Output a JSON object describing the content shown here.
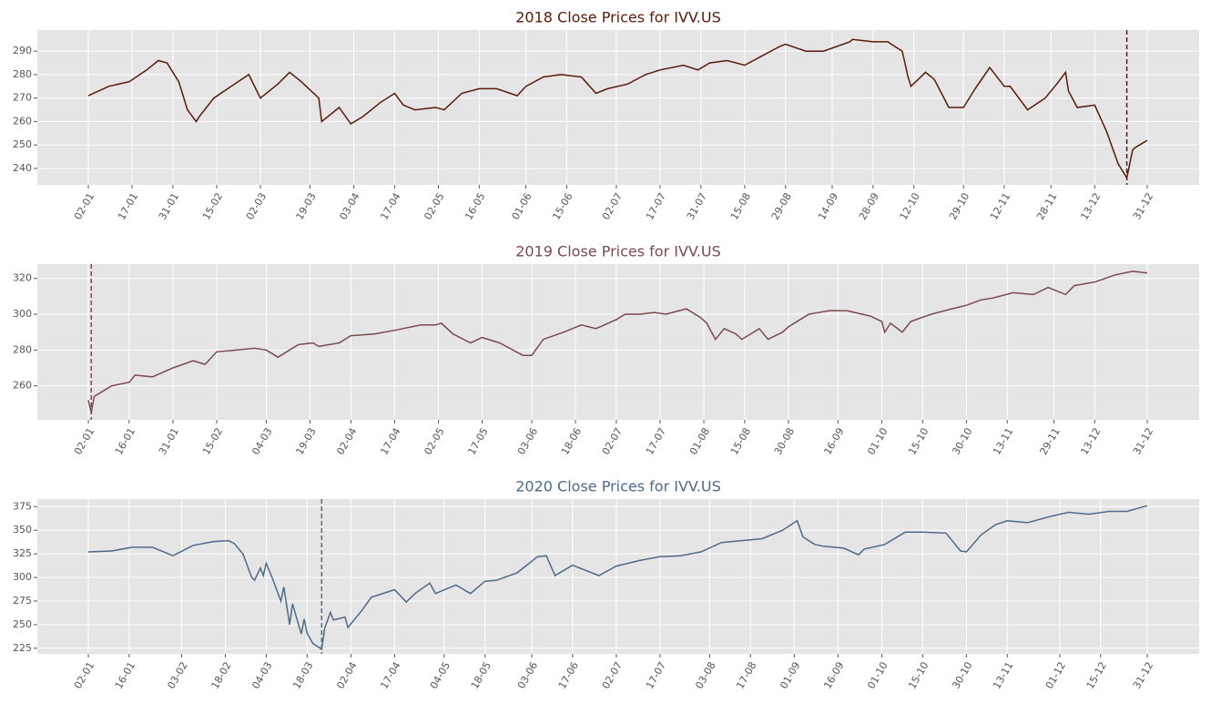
{
  "chart_data": [
    {
      "type": "line",
      "title": "2018 Close Prices for IVV.US",
      "color": "#5a1a0a",
      "grid": true,
      "x": [
        "02-01",
        "09-01",
        "16-01",
        "22-01",
        "26-01",
        "29-01",
        "02-02",
        "05-02",
        "08-02",
        "09-02",
        "14-02",
        "20-02",
        "26-02",
        "02-03",
        "08-03",
        "12-03",
        "16-03",
        "22-03",
        "23-03",
        "29-03",
        "02-04",
        "06-04",
        "12-04",
        "17-04",
        "20-04",
        "24-04",
        "01-05",
        "04-05",
        "10-05",
        "16-05",
        "22-05",
        "29-05",
        "01-06",
        "07-06",
        "13-06",
        "20-06",
        "25-06",
        "29-06",
        "06-07",
        "12-07",
        "17-07",
        "25-07",
        "30-07",
        "03-08",
        "09-08",
        "15-08",
        "21-08",
        "27-08",
        "29-08",
        "05-09",
        "11-09",
        "20-09",
        "21-09",
        "28-09",
        "03-10",
        "08-10",
        "10-10",
        "11-10",
        "16-10",
        "19-10",
        "24-10",
        "29-10",
        "02-11",
        "07-11",
        "12-11",
        "14-11",
        "20-11",
        "26-11",
        "30-11",
        "03-12",
        "04-12",
        "07-12",
        "13-12",
        "17-12",
        "21-12",
        "24-12",
        "26-12",
        "27-12",
        "31-12"
      ],
      "values": [
        271,
        275,
        277,
        282,
        286,
        285,
        277,
        265,
        260,
        262,
        270,
        275,
        280,
        270,
        276,
        281,
        277,
        270,
        260,
        266,
        259,
        262,
        268,
        272,
        267,
        265,
        266,
        265,
        272,
        274,
        274,
        271,
        275,
        279,
        280,
        279,
        272,
        274,
        276,
        280,
        282,
        284,
        282,
        285,
        286,
        284,
        288,
        292,
        293,
        290,
        290,
        294,
        295,
        294,
        294,
        290,
        279,
        275,
        281,
        278,
        266,
        266,
        274,
        283,
        275,
        275,
        265,
        270,
        276,
        281,
        273,
        266,
        267,
        256,
        242,
        236,
        248,
        249,
        252
      ],
      "ylim": [
        233,
        299
      ],
      "yticks": [
        240,
        250,
        260,
        270,
        280,
        290
      ],
      "xticks": [
        "02-01",
        "17-01",
        "31-01",
        "15-02",
        "02-03",
        "19-03",
        "03-04",
        "17-04",
        "02-05",
        "16-05",
        "01-06",
        "15-06",
        "02-07",
        "17-07",
        "31-07",
        "15-08",
        "29-08",
        "14-09",
        "28-09",
        "12-10",
        "29-10",
        "12-11",
        "28-11",
        "13-12",
        "31-12"
      ],
      "marker_x": "24-12"
    },
    {
      "type": "line",
      "title": "2019 Close Prices for IVV.US",
      "color": "#7a4a50",
      "grid": true,
      "x": [
        "02-01",
        "03-01",
        "04-01",
        "10-01",
        "16-01",
        "18-01",
        "24-01",
        "31-01",
        "07-02",
        "11-02",
        "15-02",
        "22-02",
        "28-02",
        "04-03",
        "08-03",
        "15-03",
        "20-03",
        "22-03",
        "29-03",
        "02-04",
        "10-04",
        "17-04",
        "26-04",
        "01-05",
        "03-05",
        "07-05",
        "13-05",
        "17-05",
        "23-05",
        "31-05",
        "03-06",
        "07-06",
        "14-06",
        "20-06",
        "25-06",
        "02-07",
        "05-07",
        "10-07",
        "15-07",
        "19-07",
        "26-07",
        "31-07",
        "02-08",
        "05-08",
        "08-08",
        "12-08",
        "14-08",
        "20-08",
        "23-08",
        "28-08",
        "30-08",
        "06-09",
        "13-09",
        "19-09",
        "27-09",
        "01-10",
        "02-10",
        "04-10",
        "08-10",
        "11-10",
        "18-10",
        "25-10",
        "30-10",
        "04-11",
        "08-11",
        "15-11",
        "22-11",
        "27-11",
        "03-12",
        "06-12",
        "13-12",
        "20-12",
        "26-12",
        "31-12"
      ],
      "values": [
        252,
        245,
        254,
        260,
        262,
        266,
        265,
        270,
        274,
        272,
        279,
        280,
        281,
        280,
        276,
        283,
        284,
        282,
        284,
        288,
        289,
        291,
        294,
        294,
        295,
        289,
        284,
        287,
        284,
        277,
        277,
        286,
        290,
        294,
        292,
        297,
        300,
        300,
        301,
        300,
        303,
        298,
        295,
        286,
        292,
        289,
        286,
        292,
        286,
        290,
        293,
        300,
        302,
        302,
        299,
        296,
        290,
        295,
        290,
        296,
        300,
        303,
        305,
        308,
        309,
        312,
        311,
        315,
        311,
        316,
        318,
        322,
        324,
        323
      ],
      "ylim": [
        241,
        328
      ],
      "yticks": [
        260,
        280,
        300,
        320
      ],
      "xticks": [
        "02-01",
        "16-01",
        "31-01",
        "15-02",
        "04-03",
        "19-03",
        "02-04",
        "17-04",
        "02-05",
        "17-05",
        "03-06",
        "18-06",
        "02-07",
        "17-07",
        "01-08",
        "15-08",
        "30-08",
        "16-09",
        "01-10",
        "15-10",
        "30-10",
        "13-11",
        "29-11",
        "13-12",
        "31-12"
      ],
      "marker_x": "03-01"
    },
    {
      "type": "line",
      "title": "2020 Close Prices for IVV.US",
      "color": "#4e6a8a",
      "grid": true,
      "x": [
        "02-01",
        "10-01",
        "17-01",
        "24-01",
        "31-01",
        "07-02",
        "14-02",
        "19-02",
        "21-02",
        "24-02",
        "27-02",
        "28-02",
        "02-03",
        "03-03",
        "04-03",
        "06-03",
        "09-03",
        "10-03",
        "12-03",
        "13-03",
        "16-03",
        "17-03",
        "18-03",
        "20-03",
        "23-03",
        "24-03",
        "26-03",
        "27-03",
        "31-03",
        "01-04",
        "06-04",
        "09-04",
        "14-04",
        "17-04",
        "21-04",
        "24-04",
        "29-04",
        "01-05",
        "08-05",
        "13-05",
        "18-05",
        "22-05",
        "29-05",
        "05-06",
        "08-06",
        "11-06",
        "17-06",
        "26-06",
        "02-07",
        "10-07",
        "17-07",
        "24-07",
        "31-07",
        "07-08",
        "14-08",
        "21-08",
        "28-08",
        "02-09",
        "04-09",
        "08-09",
        "11-09",
        "18-09",
        "23-09",
        "25-09",
        "02-10",
        "09-10",
        "15-10",
        "23-10",
        "28-10",
        "30-10",
        "04-11",
        "09-11",
        "13-11",
        "20-11",
        "27-11",
        "04-12",
        "11-12",
        "18-12",
        "24-12",
        "31-12"
      ],
      "values": [
        327,
        328,
        332,
        332,
        323,
        334,
        338,
        339,
        336,
        325,
        300,
        297,
        310,
        302,
        315,
        300,
        275,
        290,
        250,
        272,
        240,
        256,
        241,
        230,
        224,
        246,
        263,
        255,
        258,
        247,
        266,
        279,
        284,
        287,
        274,
        283,
        294,
        283,
        292,
        283,
        296,
        297,
        305,
        322,
        323,
        302,
        313,
        302,
        312,
        318,
        322,
        323,
        327,
        337,
        339,
        341,
        350,
        360,
        343,
        335,
        333,
        331,
        324,
        330,
        335,
        348,
        348,
        347,
        328,
        327,
        345,
        356,
        360,
        358,
        364,
        369,
        367,
        370,
        370,
        376
      ],
      "ylim": [
        219,
        383
      ],
      "yticks": [
        225,
        250,
        275,
        300,
        325,
        350,
        375
      ],
      "xticks": [
        "02-01",
        "16-01",
        "03-02",
        "18-02",
        "04-03",
        "18-03",
        "02-04",
        "17-04",
        "04-05",
        "18-05",
        "03-06",
        "17-06",
        "02-07",
        "17-07",
        "03-08",
        "17-08",
        "01-09",
        "16-09",
        "01-10",
        "15-10",
        "30-10",
        "13-11",
        "01-12",
        "15-12",
        "31-12"
      ],
      "marker_x": "23-03"
    }
  ]
}
